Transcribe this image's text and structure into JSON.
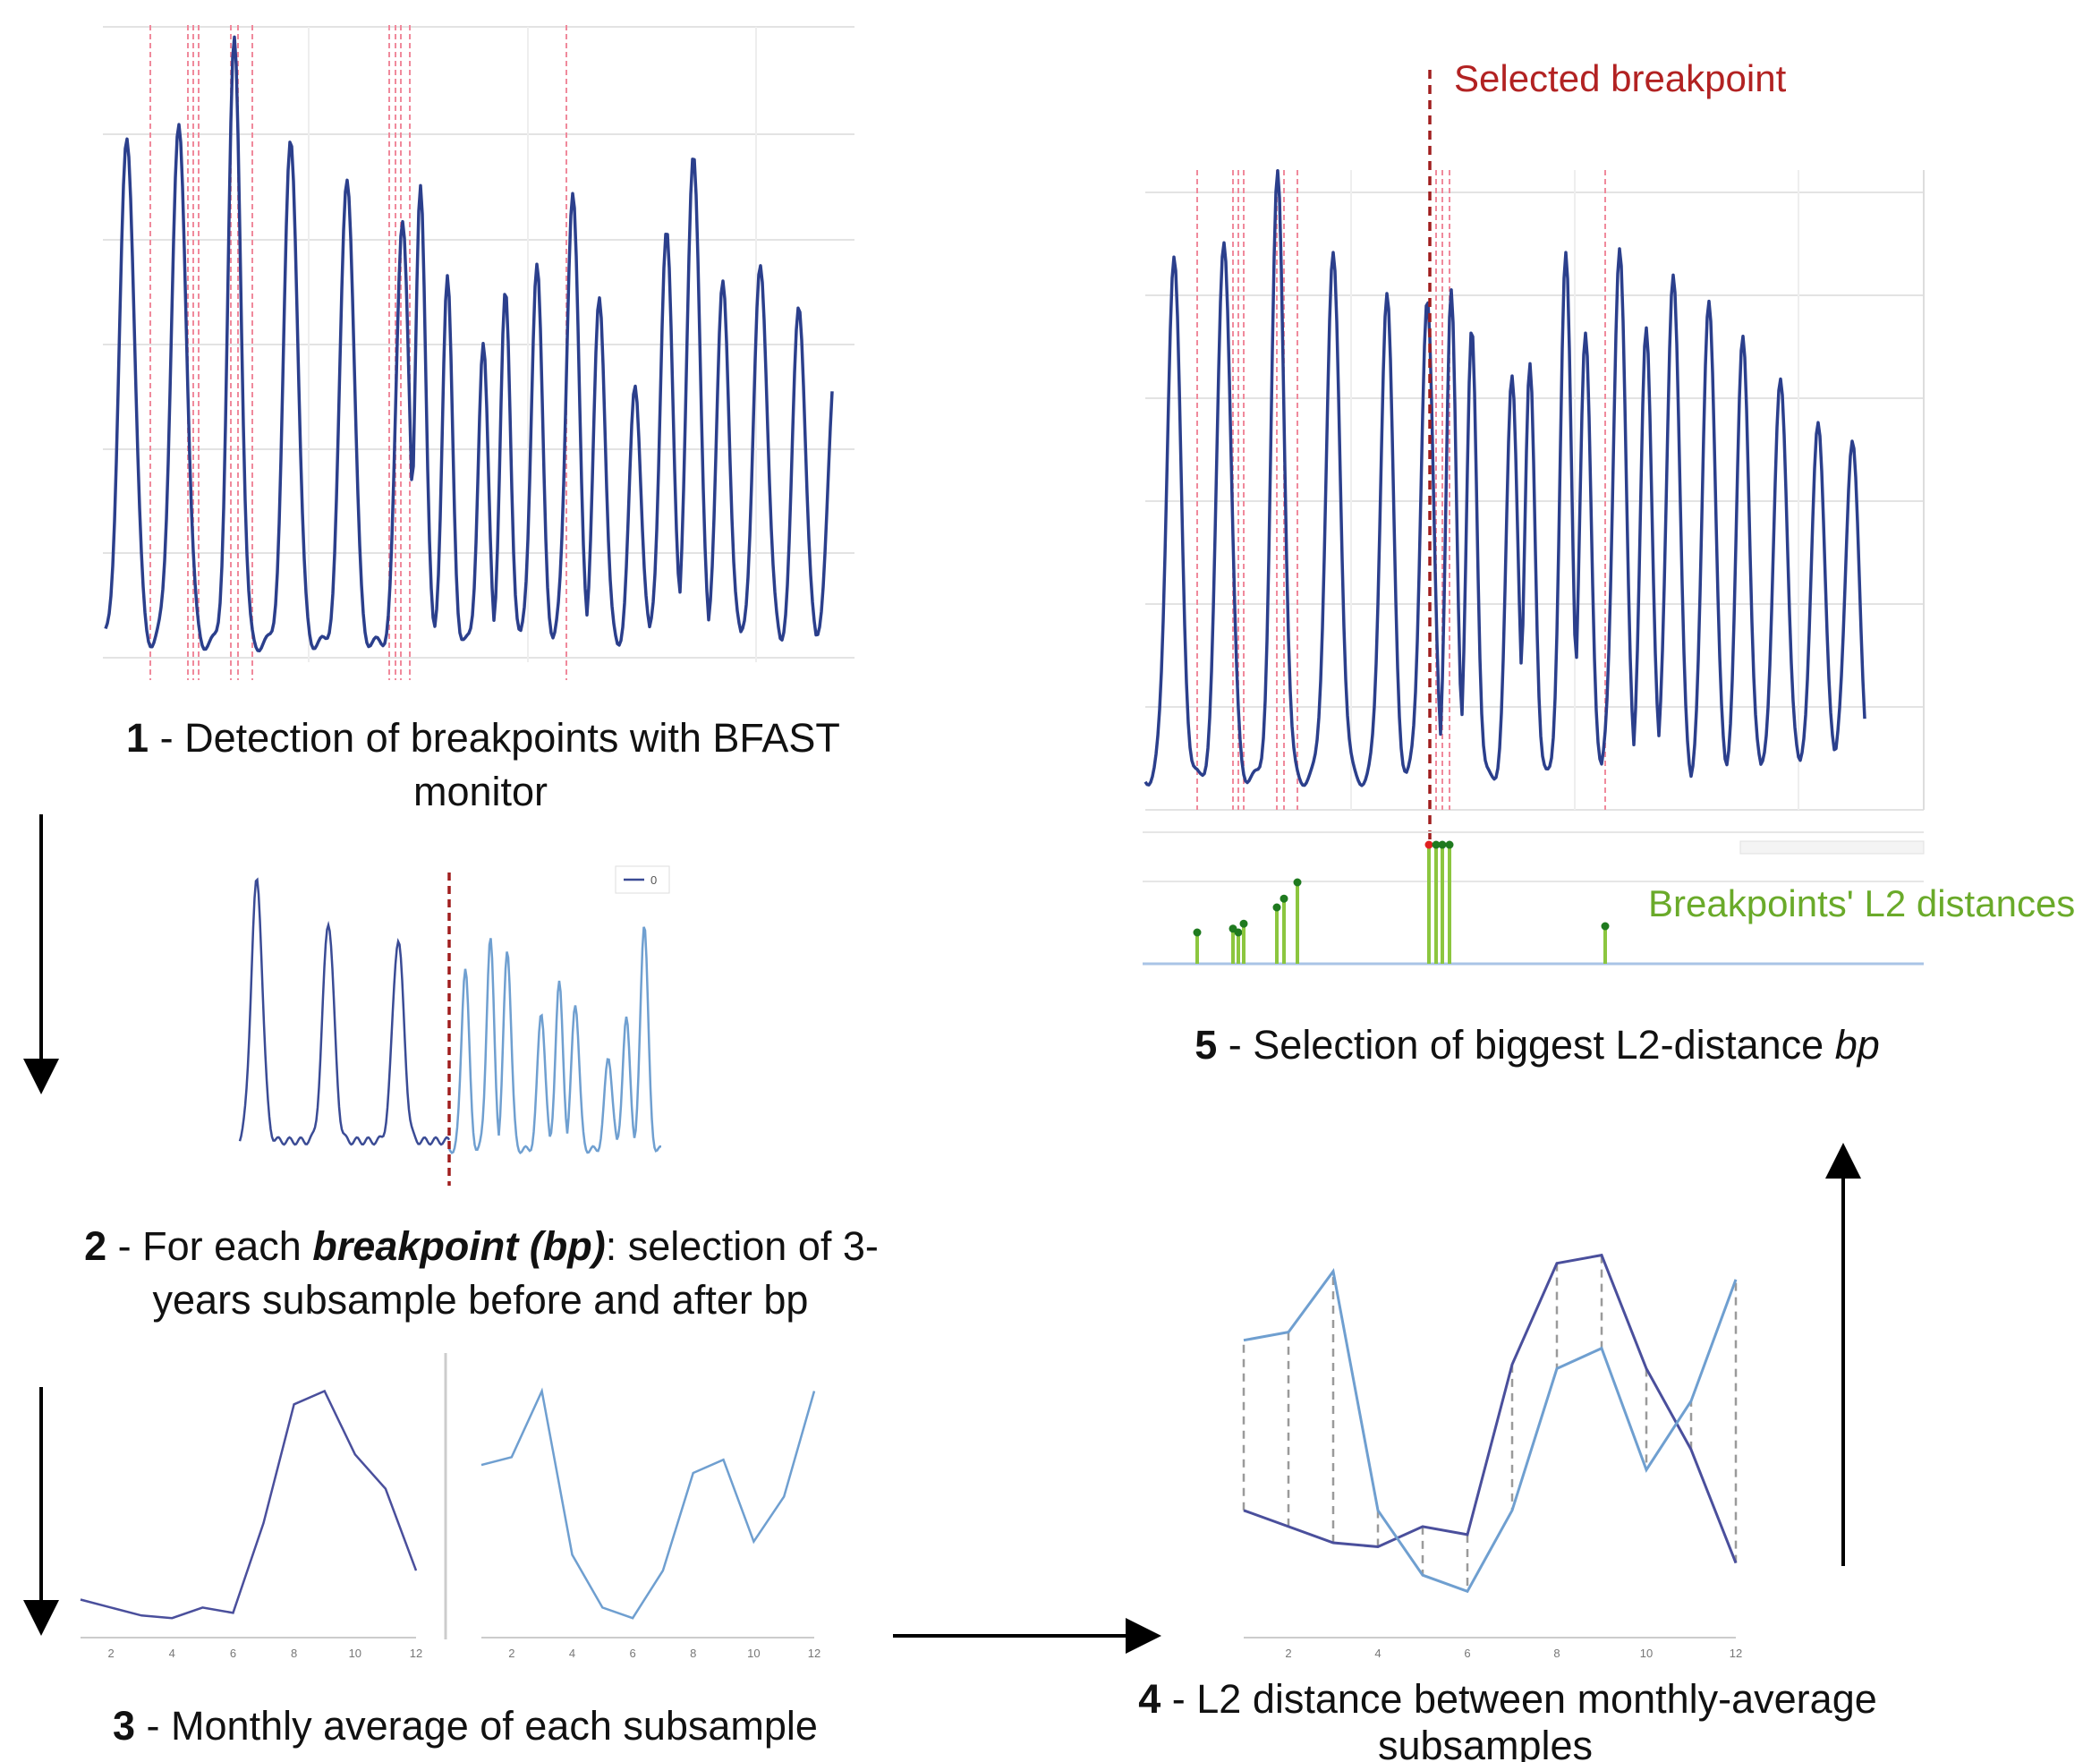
{
  "steps": {
    "step1": {
      "number": "1",
      "line1": " - Detection of breakpoints with BFAST",
      "line2": "monitor"
    },
    "step2": {
      "number": "2",
      "pre": " - For each ",
      "emph": "breakpoint (bp)",
      "post": ": selection of 3-",
      "line2": "years subsample before and after bp"
    },
    "step3": {
      "number": "3",
      "text": " - Monthly average of each subsample"
    },
    "step4": {
      "number": "4",
      "line1": " - L2 distance between monthly-average",
      "line2": "subsamples"
    },
    "step5": {
      "number": "5",
      "pre": " - Selection of biggest L2-distance ",
      "emph": "bp"
    }
  },
  "annotations": {
    "selected_breakpoint": "Selected breakpoint",
    "l2_distances": "Breakpoints' L2 distances",
    "legend_label": "0"
  },
  "colors": {
    "series_dark": "#2b3f8c",
    "series_light": "#6f9fd0",
    "breakpoint_line": "#f08a9c",
    "selected_line": "#a01e1e",
    "selected_text": "#b22222",
    "l2_green": "#8cc63f",
    "l2_text": "#6aaa2a",
    "stem_head": "#1f7a1f",
    "gridline": "#e3e3e3"
  },
  "chart_data": [
    {
      "id": "monthly-average-before",
      "type": "line",
      "x": [
        1,
        2,
        3,
        4,
        5,
        6,
        7,
        8,
        9,
        10,
        11,
        12
      ],
      "values": [
        0.11,
        0.08,
        0.05,
        0.04,
        0.08,
        0.06,
        0.4,
        0.85,
        0.9,
        0.66,
        0.53,
        0.22
      ],
      "x_ticks": [
        "2",
        "4",
        "6",
        "8",
        "10",
        "12"
      ],
      "ylim": [
        0,
        1
      ]
    },
    {
      "id": "monthly-average-after",
      "type": "line",
      "x": [
        1,
        2,
        3,
        4,
        5,
        6,
        7,
        8,
        9,
        10,
        11,
        12
      ],
      "values": [
        0.62,
        0.65,
        0.9,
        0.28,
        0.08,
        0.04,
        0.22,
        0.59,
        0.64,
        0.33,
        0.5,
        0.9
      ],
      "x_ticks": [
        "2",
        "4",
        "6",
        "8",
        "10",
        "12"
      ],
      "ylim": [
        0,
        1
      ]
    },
    {
      "id": "l2-distance-overlay",
      "type": "line",
      "x": [
        1,
        2,
        3,
        4,
        5,
        6,
        7,
        8,
        9,
        10,
        11,
        12
      ],
      "series": [
        {
          "values": [
            0.37,
            0.33,
            0.29,
            0.28,
            0.33,
            0.31,
            0.73,
            0.98,
            1.0,
            0.72,
            0.52,
            0.24
          ]
        },
        {
          "values": [
            0.79,
            0.81,
            0.96,
            0.37,
            0.21,
            0.17,
            0.37,
            0.72,
            0.77,
            0.47,
            0.64,
            0.94
          ]
        }
      ],
      "x_ticks": [
        "2",
        "4",
        "6",
        "8",
        "10",
        "12"
      ],
      "ylim": [
        0.1,
        1.05
      ]
    },
    {
      "id": "breakpoint-l2-distances",
      "type": "bar",
      "values": [
        0.25,
        0.28,
        0.25,
        0.32,
        0.45,
        0.52,
        0.65,
        0.95,
        0.95,
        0.95,
        0.95,
        0.3
      ],
      "ylim": [
        0,
        1
      ]
    }
  ]
}
